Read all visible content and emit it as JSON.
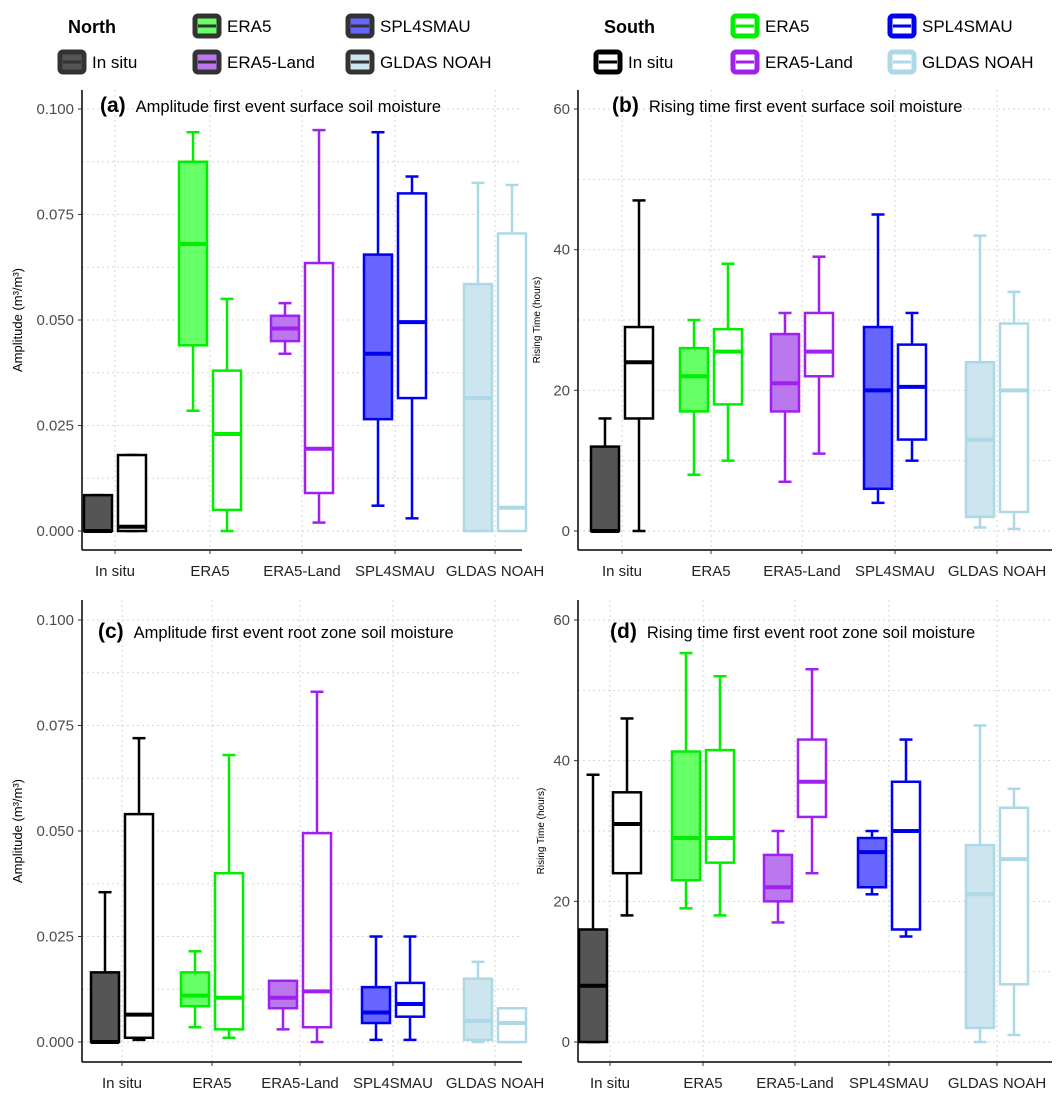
{
  "legend": {
    "north": {
      "title": "North",
      "entries": [
        {
          "label": "In situ",
          "color": "#111111",
          "fill": "#555555",
          "icon": "filled-box-icon"
        },
        {
          "label": "ERA5",
          "color": "#111111",
          "fill": "#66ff66",
          "icon": "filled-box-icon"
        },
        {
          "label": "ERA5-Land",
          "color": "#111111",
          "fill": "#bb77ee",
          "icon": "filled-box-icon"
        },
        {
          "label": "SPL4SMAU",
          "color": "#111111",
          "fill": "#6666ff",
          "icon": "filled-box-icon"
        },
        {
          "label": "GLDAS NOAH",
          "color": "#111111",
          "fill": "#cce5ee",
          "icon": "filled-box-icon"
        }
      ]
    },
    "south": {
      "title": "South",
      "entries": [
        {
          "label": "In situ",
          "color": "#000000",
          "icon": "hollow-box-icon"
        },
        {
          "label": "ERA5",
          "color": "#00ee00",
          "icon": "hollow-box-icon"
        },
        {
          "label": "ERA5-Land",
          "color": "#a020f0",
          "icon": "hollow-box-icon"
        },
        {
          "label": "SPL4SMAU",
          "color": "#0000ee",
          "icon": "hollow-box-icon"
        },
        {
          "label": "GLDAS NOAH",
          "color": "#add8e6",
          "icon": "hollow-box-icon"
        }
      ]
    }
  },
  "colors": {
    "In situ": {
      "line": "#000000",
      "fill": "#555555"
    },
    "ERA5": {
      "line": "#00ee00",
      "fill": "#66ff66"
    },
    "ERA5-Land": {
      "line": "#a020f0",
      "fill": "#bb77ee"
    },
    "SPL4SMAU": {
      "line": "#0000ee",
      "fill": "#6666ff"
    },
    "GLDAS NOAH": {
      "line": "#add8e6",
      "fill": "#cce5ee"
    }
  },
  "chart_data": [
    {
      "type": "box",
      "panel": "(a)",
      "title": "Amplitude first event surface soil moisture",
      "ylabel": "Amplitude (m³/m³)",
      "ylim": [
        0,
        0.1
      ],
      "yticks": [
        "0.000",
        "0.025",
        "0.050",
        "0.075",
        "0.100"
      ],
      "ytick_values": [
        0,
        0.025,
        0.05,
        0.075,
        0.1
      ],
      "categories": [
        "In situ",
        "ERA5",
        "ERA5-Land",
        "SPL4SMAU",
        "GLDAS NOAH"
      ],
      "series": [
        {
          "name": "North",
          "boxes": [
            {
              "min": 0,
              "q1": 0,
              "median": 0,
              "q3": 0.0085,
              "max": 0.0085
            },
            {
              "min": 0.0285,
              "q1": 0.044,
              "median": 0.068,
              "q3": 0.0875,
              "max": 0.0945
            },
            {
              "min": 0.042,
              "q1": 0.045,
              "median": 0.048,
              "q3": 0.051,
              "max": 0.054
            },
            {
              "min": 0.006,
              "q1": 0.0265,
              "median": 0.042,
              "q3": 0.0655,
              "max": 0.0945
            },
            {
              "min": 0,
              "q1": 0,
              "median": 0.0315,
              "q3": 0.0585,
              "max": 0.0825
            }
          ]
        },
        {
          "name": "South",
          "boxes": [
            {
              "min": 0,
              "q1": 0,
              "median": 0.001,
              "q3": 0.018,
              "max": 0.018
            },
            {
              "min": 0,
              "q1": 0.005,
              "median": 0.023,
              "q3": 0.038,
              "max": 0.055
            },
            {
              "min": 0.002,
              "q1": 0.009,
              "median": 0.0195,
              "q3": 0.0635,
              "max": 0.095
            },
            {
              "min": 0.003,
              "q1": 0.0315,
              "median": 0.0495,
              "q3": 0.08,
              "max": 0.084
            },
            {
              "min": 0,
              "q1": 0,
              "median": 0.0055,
              "q3": 0.0705,
              "max": 0.082
            }
          ]
        }
      ]
    },
    {
      "type": "box",
      "panel": "(b)",
      "title": "Rising time first event surface soil moisture",
      "ylabel": "Rising Time (hours)",
      "ylim": [
        0,
        60
      ],
      "yticks": [
        "0",
        "20",
        "40",
        "60"
      ],
      "ytick_values": [
        0,
        20,
        40,
        60
      ],
      "categories": [
        "In situ",
        "ERA5",
        "ERA5-Land",
        "SPL4SMAU",
        "GLDAS NOAH"
      ],
      "series": [
        {
          "name": "North",
          "boxes": [
            {
              "min": 0,
              "q1": 0,
              "median": 0,
              "q3": 12,
              "max": 16
            },
            {
              "min": 8,
              "q1": 17,
              "median": 22,
              "q3": 26,
              "max": 30
            },
            {
              "min": 7,
              "q1": 17,
              "median": 21,
              "q3": 28,
              "max": 31
            },
            {
              "min": 4,
              "q1": 6,
              "median": 20,
              "q3": 29,
              "max": 45
            },
            {
              "min": 0.5,
              "q1": 2,
              "median": 13,
              "q3": 24,
              "max": 42
            }
          ]
        },
        {
          "name": "South",
          "boxes": [
            {
              "min": 0,
              "q1": 16,
              "median": 24,
              "q3": 29,
              "max": 47
            },
            {
              "min": 10,
              "q1": 18,
              "median": 25.5,
              "q3": 28.7,
              "max": 38
            },
            {
              "min": 11,
              "q1": 22,
              "median": 25.5,
              "q3": 31,
              "max": 39
            },
            {
              "min": 10,
              "q1": 13,
              "median": 20.5,
              "q3": 26.5,
              "max": 31
            },
            {
              "min": 0.3,
              "q1": 2.7,
              "median": 20,
              "q3": 29.5,
              "max": 34
            }
          ]
        }
      ]
    },
    {
      "type": "box",
      "panel": "(c)",
      "title": "Amplitude first event root zone soil moisture",
      "ylabel": "Amplitude (m³/m³)",
      "ylim": [
        0,
        0.1
      ],
      "yticks": [
        "0.000",
        "0.025",
        "0.050",
        "0.075",
        "0.100"
      ],
      "ytick_values": [
        0,
        0.025,
        0.05,
        0.075,
        0.1
      ],
      "categories": [
        "In situ",
        "ERA5",
        "ERA5-Land",
        "SPL4SMAU",
        "GLDAS NOAH"
      ],
      "series": [
        {
          "name": "North",
          "boxes": [
            {
              "min": 0,
              "q1": 0,
              "median": 0,
              "q3": 0.0165,
              "max": 0.0355
            },
            {
              "min": 0.0035,
              "q1": 0.0085,
              "median": 0.011,
              "q3": 0.0165,
              "max": 0.0215
            },
            {
              "min": 0.003,
              "q1": 0.008,
              "median": 0.0105,
              "q3": 0.0145,
              "max": 0.0145
            },
            {
              "min": 0.0005,
              "q1": 0.0045,
              "median": 0.007,
              "q3": 0.013,
              "max": 0.025
            },
            {
              "min": 0,
              "q1": 0.0005,
              "median": 0.005,
              "q3": 0.015,
              "max": 0.019
            }
          ]
        },
        {
          "name": "South",
          "boxes": [
            {
              "min": 0.0005,
              "q1": 0.001,
              "median": 0.0065,
              "q3": 0.054,
              "max": 0.072
            },
            {
              "min": 0.001,
              "q1": 0.003,
              "median": 0.0105,
              "q3": 0.04,
              "max": 0.068
            },
            {
              "min": 0,
              "q1": 0.0035,
              "median": 0.012,
              "q3": 0.0495,
              "max": 0.083
            },
            {
              "min": 0.0005,
              "q1": 0.006,
              "median": 0.009,
              "q3": 0.014,
              "max": 0.025
            },
            {
              "min": 0,
              "q1": 0,
              "median": 0.0045,
              "q3": 0.008,
              "max": 0.008
            }
          ]
        }
      ]
    },
    {
      "type": "box",
      "panel": "(d)",
      "title": "Rising time first event root zone soil moisture",
      "ylabel": "Rising Time (hours)",
      "ylim": [
        0,
        60
      ],
      "yticks": [
        "0",
        "20",
        "40",
        "60"
      ],
      "ytick_values": [
        0,
        20,
        40,
        60
      ],
      "categories": [
        "In situ",
        "ERA5",
        "ERA5-Land",
        "SPL4SMAU",
        "GLDAS NOAH"
      ],
      "series": [
        {
          "name": "North",
          "boxes": [
            {
              "min": 0,
              "q1": 0,
              "median": 8,
              "q3": 16,
              "max": 38
            },
            {
              "min": 19,
              "q1": 23,
              "median": 29,
              "q3": 41.3,
              "max": 55.3
            },
            {
              "min": 17,
              "q1": 20,
              "median": 22,
              "q3": 26.6,
              "max": 30
            },
            {
              "min": 21,
              "q1": 22,
              "median": 27,
              "q3": 29,
              "max": 30
            },
            {
              "min": 0,
              "q1": 2,
              "median": 21,
              "q3": 28,
              "max": 45
            }
          ]
        },
        {
          "name": "South",
          "boxes": [
            {
              "min": 18,
              "q1": 24,
              "median": 31,
              "q3": 35.5,
              "max": 46
            },
            {
              "min": 18,
              "q1": 25.5,
              "median": 29,
              "q3": 41.5,
              "max": 52
            },
            {
              "min": 24,
              "q1": 32,
              "median": 37,
              "q3": 43,
              "max": 53
            },
            {
              "min": 15,
              "q1": 16,
              "median": 30,
              "q3": 37,
              "max": 43
            },
            {
              "min": 1,
              "q1": 8.2,
              "median": 26,
              "q3": 33.3,
              "max": 36
            }
          ]
        }
      ]
    }
  ]
}
